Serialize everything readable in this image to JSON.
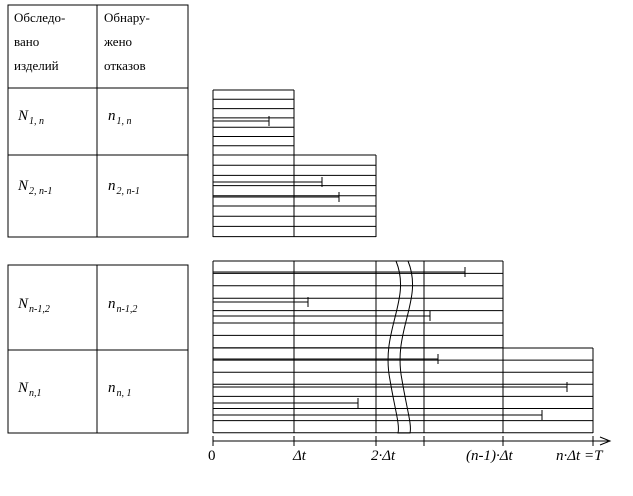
{
  "table": {
    "header": [
      [
        "Обследо-",
        "вано",
        "изделий"
      ],
      [
        "Обнару-",
        "жено",
        "отказов"
      ]
    ],
    "rows": [
      [
        {
          "symbol": "N",
          "sub": "1, n"
        },
        {
          "symbol": "n",
          "sub": "1, n"
        }
      ],
      [
        {
          "symbol": "N",
          "sub": "2, n-1"
        },
        {
          "symbol": "n",
          "sub": "2, n-1"
        }
      ],
      [
        {
          "symbol": "N",
          "sub": "n-1,2"
        },
        {
          "symbol": "n",
          "sub": "n-1,2"
        }
      ],
      [
        {
          "symbol": "N",
          "sub": "n,1"
        },
        {
          "symbol": "n",
          "sub": "n, 1"
        }
      ]
    ]
  },
  "axis": {
    "labels": [
      "0",
      "Δt",
      "2·Δt",
      "(n-1)·Δt",
      "n·Δt =T"
    ]
  }
}
